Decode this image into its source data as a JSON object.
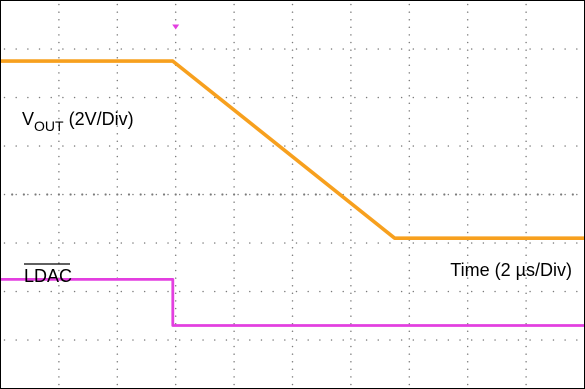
{
  "chart_data": {
    "type": "line",
    "title": "",
    "xlabel": "Time (2 µs/Div)",
    "grid": true,
    "annotations": {
      "vout_main": "V",
      "vout_sub": "OUT",
      "vout_scale": " (2V/Div)",
      "ldac": "LDAC",
      "time_scale": "Time (2 µs/Div)"
    },
    "trigger_marker": "top-center",
    "series": [
      {
        "name": "VOUT",
        "color": "#F7A01E",
        "x": [
          0,
          2.95,
          6.75,
          10.0
        ],
        "y": [
          2.75,
          2.75,
          -0.9,
          -0.9
        ]
      },
      {
        "name": "LDAC",
        "color": "#E33FE0",
        "x": [
          0,
          2.95,
          2.95,
          10.0
        ],
        "y": [
          -1.75,
          -1.75,
          -2.7,
          -2.7
        ]
      }
    ]
  }
}
